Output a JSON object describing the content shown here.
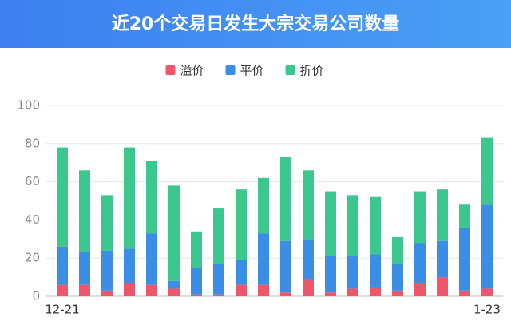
{
  "chart_data": {
    "type": "stacked-bar",
    "title": "近20个交易日发生大宗交易公司数量",
    "categories": [
      "12-21",
      null,
      null,
      null,
      null,
      null,
      null,
      null,
      null,
      null,
      null,
      null,
      null,
      null,
      null,
      null,
      null,
      null,
      null,
      "1-23"
    ],
    "series": [
      {
        "name": "溢价",
        "color": "#f0566b",
        "values": [
          6,
          6,
          3,
          7,
          6,
          4,
          1,
          1,
          6,
          6,
          2,
          9,
          2,
          4,
          5,
          3,
          7,
          10,
          3,
          4
        ]
      },
      {
        "name": "平价",
        "color": "#3a8ee6",
        "values": [
          20,
          17,
          21,
          18,
          27,
          4,
          14,
          16,
          13,
          27,
          27,
          21,
          19,
          17,
          17,
          14,
          21,
          19,
          33,
          44
        ]
      },
      {
        "name": "折价",
        "color": "#3cc78f",
        "values": [
          52,
          43,
          29,
          53,
          38,
          50,
          19,
          29,
          37,
          29,
          44,
          36,
          34,
          32,
          30,
          14,
          27,
          27,
          12,
          35
        ]
      }
    ],
    "ylim": [
      0,
      100
    ],
    "yticks": [
      0,
      20,
      40,
      60,
      80,
      100
    ],
    "grid": true
  }
}
